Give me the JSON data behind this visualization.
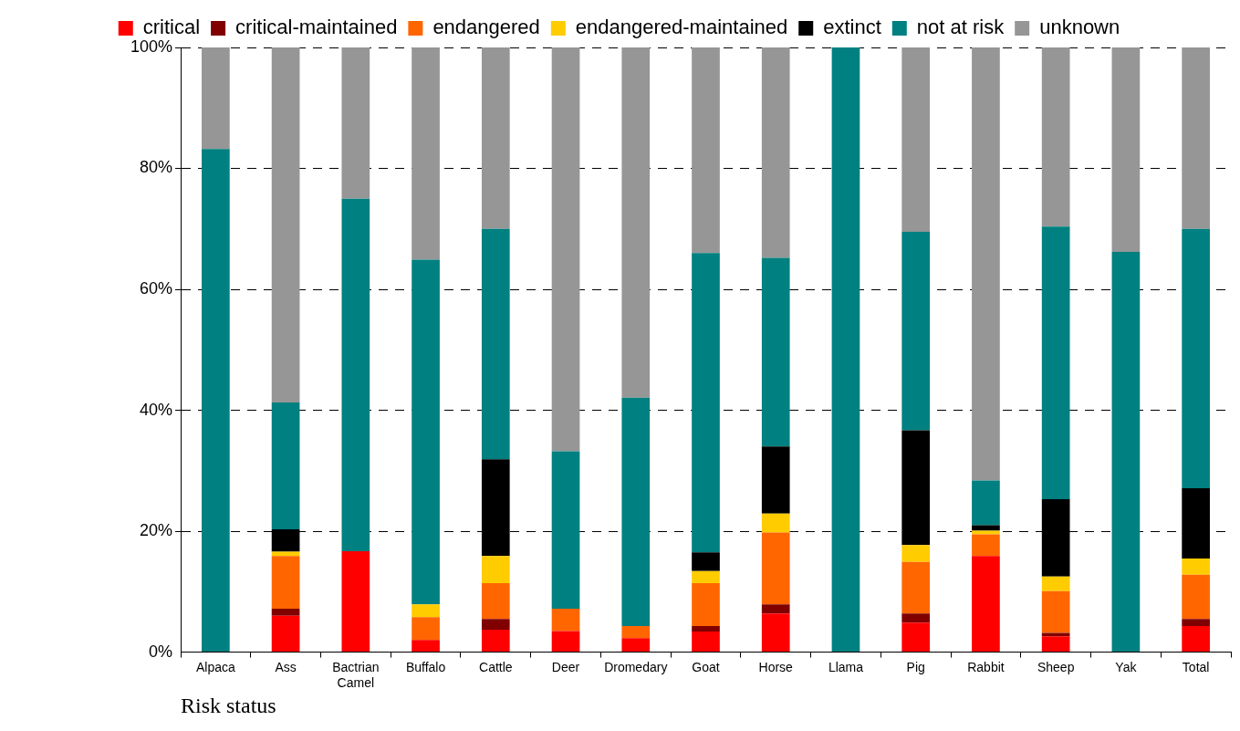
{
  "chart_data": {
    "type": "bar",
    "stacked": true,
    "xlabel": "Risk status",
    "categories": [
      "Alpaca",
      "Ass",
      "Bactrian Camel",
      "Buffalo",
      "Cattle",
      "Deer",
      "Dromedary",
      "Goat",
      "Horse",
      "Llama",
      "Pig",
      "Rabbit",
      "Sheep",
      "Yak",
      "Total"
    ],
    "series": [
      {
        "name": "critical",
        "color": "#ff0000",
        "values": [
          0,
          6.0,
          16.7,
          2.0,
          3.7,
          3.5,
          2.3,
          3.4,
          6.4,
          0,
          4.9,
          15.9,
          2.6,
          0,
          4.3
        ]
      },
      {
        "name": "critical-maintained",
        "color": "#800000",
        "values": [
          0,
          1.2,
          0,
          0,
          1.8,
          0,
          0,
          0.9,
          1.5,
          0,
          1.5,
          0,
          0.6,
          0,
          1.2
        ]
      },
      {
        "name": "endangered",
        "color": "#ff6600",
        "values": [
          0,
          8.7,
          0,
          3.8,
          5.9,
          3.7,
          2.0,
          7.1,
          11.9,
          0,
          8.5,
          3.6,
          6.9,
          0,
          7.3
        ]
      },
      {
        "name": "endangered-maintained",
        "color": "#ffcc00",
        "values": [
          0,
          0.7,
          0,
          2.1,
          4.5,
          0,
          0,
          2.0,
          3.1,
          0,
          2.8,
          0.6,
          2.4,
          0,
          2.7
        ]
      },
      {
        "name": "extinct",
        "color": "#000000",
        "values": [
          0,
          3.7,
          0,
          0,
          16.0,
          0,
          0,
          3.1,
          11.1,
          0,
          19.0,
          0.9,
          12.8,
          0,
          11.6
        ]
      },
      {
        "name": "not at risk",
        "color": "#008080",
        "values": [
          83.2,
          21.0,
          58.3,
          57.0,
          38.1,
          26.0,
          37.8,
          49.5,
          31.2,
          100,
          32.8,
          7.4,
          45.1,
          66.2,
          42.9
        ]
      },
      {
        "name": "unknown",
        "color": "#969696",
        "values": [
          16.8,
          58.7,
          25.0,
          35.1,
          30.0,
          66.8,
          57.9,
          34.0,
          34.8,
          0,
          30.5,
          71.6,
          29.6,
          33.8,
          30.0
        ]
      }
    ],
    "ylim": [
      0,
      100
    ],
    "yticks": [
      {
        "value": 0,
        "label": "0%"
      },
      {
        "value": 20,
        "label": "20%"
      },
      {
        "value": 40,
        "label": "40%"
      },
      {
        "value": 60,
        "label": "60%"
      },
      {
        "value": 80,
        "label": "80%"
      },
      {
        "value": 100,
        "label": "100%"
      }
    ],
    "grid": "y",
    "legend": "top"
  }
}
